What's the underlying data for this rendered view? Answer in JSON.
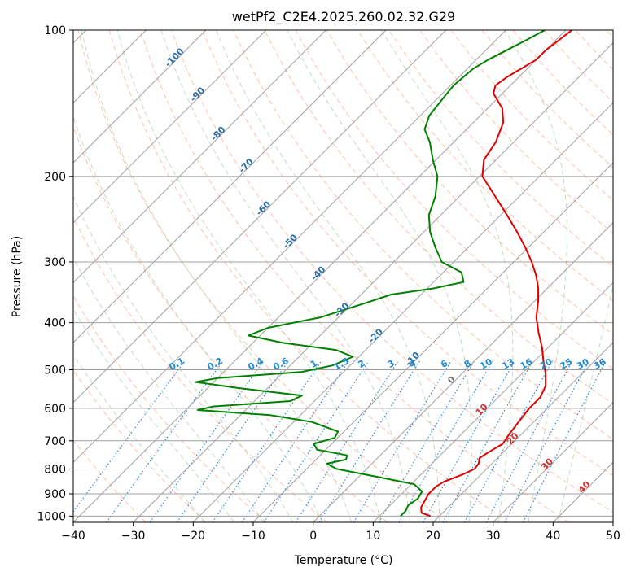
{
  "chart_data": {
    "type": "line",
    "subtype": "skew-t log-p diagram",
    "title": "wetPf2_C2E4.2025.260.02.32.G29",
    "xlabel": "Temperature (°C)",
    "ylabel": "Pressure (hPa)",
    "xlim": [
      -40,
      50
    ],
    "ylim": [
      1030,
      100
    ],
    "y_scale": "log",
    "grid": true,
    "x_ticks": [
      -40,
      -30,
      -20,
      -10,
      0,
      10,
      20,
      30,
      40,
      50
    ],
    "x_tick_labels": [
      "−40",
      "−30",
      "−20",
      "−10",
      "0",
      "10",
      "20",
      "30",
      "40",
      "50"
    ],
    "y_ticks": [
      100,
      200,
      300,
      400,
      500,
      600,
      700,
      800,
      900,
      1000
    ],
    "y_tick_labels": [
      "100",
      "200",
      "300",
      "400",
      "500",
      "600",
      "700",
      "800",
      "900",
      "1000"
    ],
    "isotherm_labels": [
      {
        "t": -100,
        "text": "-100"
      },
      {
        "t": -90,
        "text": "-90"
      },
      {
        "t": -80,
        "text": "-80"
      },
      {
        "t": -70,
        "text": "-70"
      },
      {
        "t": -60,
        "text": "-60"
      },
      {
        "t": -50,
        "text": "-50"
      },
      {
        "t": -40,
        "text": "-40"
      },
      {
        "t": -30,
        "text": "-30"
      },
      {
        "t": -20,
        "text": "-20"
      },
      {
        "t": -10,
        "text": "-10"
      }
    ],
    "mixing_ratio_labels": [
      "0.1",
      "0.2",
      "0.4",
      "0.6",
      "1",
      "1.5",
      "2",
      "3",
      "4",
      "6",
      "8",
      "10",
      "13",
      "16",
      "20",
      "25",
      "30",
      "36"
    ],
    "isotherm_positive_labels": [
      "0",
      "10",
      "20",
      "30",
      "40"
    ],
    "series": [
      {
        "color": "#e00000",
        "points": [
          {
            "p": 1000,
            "t": 18.5
          },
          {
            "p": 985,
            "t": 16.5
          },
          {
            "p": 960,
            "t": 15.5
          },
          {
            "p": 930,
            "t": 15.0
          },
          {
            "p": 900,
            "t": 14.5
          },
          {
            "p": 870,
            "t": 14.5
          },
          {
            "p": 850,
            "t": 15.0
          },
          {
            "p": 820,
            "t": 17.0
          },
          {
            "p": 800,
            "t": 18.0
          },
          {
            "p": 780,
            "t": 17.8
          },
          {
            "p": 760,
            "t": 17.0
          },
          {
            "p": 740,
            "t": 17.5
          },
          {
            "p": 710,
            "t": 18.5
          },
          {
            "p": 680,
            "t": 18.0
          },
          {
            "p": 640,
            "t": 17.5
          },
          {
            "p": 600,
            "t": 17.0
          },
          {
            "p": 570,
            "t": 17.0
          },
          {
            "p": 540,
            "t": 16.0
          },
          {
            "p": 510,
            "t": 14.0
          },
          {
            "p": 480,
            "t": 11.5
          },
          {
            "p": 450,
            "t": 9.0
          },
          {
            "p": 420,
            "t": 6.0
          },
          {
            "p": 390,
            "t": 3.0
          },
          {
            "p": 360,
            "t": 0.5
          },
          {
            "p": 340,
            "t": -1.5
          },
          {
            "p": 320,
            "t": -4.0
          },
          {
            "p": 300,
            "t": -7.0
          },
          {
            "p": 280,
            "t": -10.5
          },
          {
            "p": 260,
            "t": -14.5
          },
          {
            "p": 240,
            "t": -19.0
          },
          {
            "p": 220,
            "t": -24.0
          },
          {
            "p": 200,
            "t": -29.5
          },
          {
            "p": 185,
            "t": -32.0
          },
          {
            "p": 170,
            "t": -33.0
          },
          {
            "p": 155,
            "t": -35.0
          },
          {
            "p": 145,
            "t": -37.5
          },
          {
            "p": 135,
            "t": -41.5
          },
          {
            "p": 130,
            "t": -42.5
          },
          {
            "p": 125,
            "t": -42.0
          },
          {
            "p": 120,
            "t": -41.0
          },
          {
            "p": 115,
            "t": -40.0
          },
          {
            "p": 110,
            "t": -40.0
          },
          {
            "p": 105,
            "t": -39.5
          },
          {
            "p": 100,
            "t": -39.0
          }
        ]
      },
      {
        "color": "#008000",
        "points": [
          {
            "p": 1000,
            "t": 13.5
          },
          {
            "p": 975,
            "t": 13.5
          },
          {
            "p": 950,
            "t": 13.0
          },
          {
            "p": 920,
            "t": 13.5
          },
          {
            "p": 890,
            "t": 13.0
          },
          {
            "p": 860,
            "t": 10.5
          },
          {
            "p": 830,
            "t": 3.0
          },
          {
            "p": 800,
            "t": -5.0
          },
          {
            "p": 780,
            "t": -7.5
          },
          {
            "p": 765,
            "t": -5.0
          },
          {
            "p": 750,
            "t": -5.5
          },
          {
            "p": 730,
            "t": -11.5
          },
          {
            "p": 710,
            "t": -13.0
          },
          {
            "p": 690,
            "t": -10.5
          },
          {
            "p": 670,
            "t": -11.0
          },
          {
            "p": 640,
            "t": -17.0
          },
          {
            "p": 620,
            "t": -25.0
          },
          {
            "p": 605,
            "t": -38.0
          },
          {
            "p": 595,
            "t": -36.0
          },
          {
            "p": 580,
            "t": -24.0
          },
          {
            "p": 565,
            "t": -23.0
          },
          {
            "p": 545,
            "t": -35.0
          },
          {
            "p": 530,
            "t": -43.0
          },
          {
            "p": 520,
            "t": -40.0
          },
          {
            "p": 505,
            "t": -27.0
          },
          {
            "p": 490,
            "t": -23.0
          },
          {
            "p": 470,
            "t": -21.0
          },
          {
            "p": 455,
            "t": -25.0
          },
          {
            "p": 440,
            "t": -35.0
          },
          {
            "p": 425,
            "t": -42.0
          },
          {
            "p": 410,
            "t": -40.0
          },
          {
            "p": 390,
            "t": -33.0
          },
          {
            "p": 365,
            "t": -28.0
          },
          {
            "p": 350,
            "t": -25.0
          },
          {
            "p": 340,
            "t": -19.0
          },
          {
            "p": 330,
            "t": -15.0
          },
          {
            "p": 315,
            "t": -17.0
          },
          {
            "p": 300,
            "t": -22.0
          },
          {
            "p": 280,
            "t": -25.5
          },
          {
            "p": 260,
            "t": -29.0
          },
          {
            "p": 240,
            "t": -32.0
          },
          {
            "p": 220,
            "t": -34.0
          },
          {
            "p": 200,
            "t": -37.0
          },
          {
            "p": 185,
            "t": -40.5
          },
          {
            "p": 170,
            "t": -44.0
          },
          {
            "p": 160,
            "t": -47.0
          },
          {
            "p": 150,
            "t": -48.5
          },
          {
            "p": 140,
            "t": -49.0
          },
          {
            "p": 130,
            "t": -49.5
          },
          {
            "p": 120,
            "t": -49.0
          },
          {
            "p": 115,
            "t": -48.0
          },
          {
            "p": 110,
            "t": -46.5
          },
          {
            "p": 105,
            "t": -45.0
          },
          {
            "p": 100,
            "t": -43.5
          }
        ]
      }
    ]
  }
}
